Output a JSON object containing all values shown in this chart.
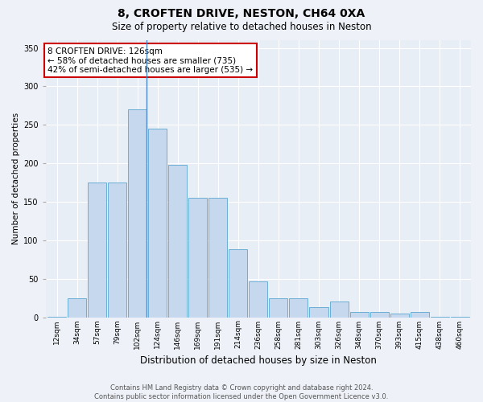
{
  "title_line1": "8, CROFTEN DRIVE, NESTON, CH64 0XA",
  "title_line2": "Size of property relative to detached houses in Neston",
  "xlabel": "Distribution of detached houses by size in Neston",
  "ylabel": "Number of detached properties",
  "bar_labels": [
    "12sqm",
    "34sqm",
    "57sqm",
    "79sqm",
    "102sqm",
    "124sqm",
    "146sqm",
    "169sqm",
    "191sqm",
    "214sqm",
    "236sqm",
    "258sqm",
    "281sqm",
    "303sqm",
    "326sqm",
    "348sqm",
    "370sqm",
    "393sqm",
    "415sqm",
    "438sqm",
    "460sqm"
  ],
  "bar_heights": [
    1,
    25,
    175,
    175,
    270,
    245,
    198,
    155,
    155,
    88,
    47,
    25,
    25,
    13,
    20,
    7,
    7,
    5,
    7,
    1,
    1
  ],
  "bar_color": "#c5d8ee",
  "bar_edge_color": "#6baed6",
  "highlight_line_color": "#4a86c8",
  "annotation_text": "8 CROFTEN DRIVE: 126sqm\n← 58% of detached houses are smaller (735)\n42% of semi-detached houses are larger (535) →",
  "annotation_box_color": "white",
  "annotation_border_color": "#cc0000",
  "ylim": [
    0,
    360
  ],
  "yticks": [
    0,
    50,
    100,
    150,
    200,
    250,
    300,
    350
  ],
  "footer_line1": "Contains HM Land Registry data © Crown copyright and database right 2024.",
  "footer_line2": "Contains public sector information licensed under the Open Government Licence v3.0.",
  "bg_color": "#eef2f8",
  "plot_bg_color": "#e8eef6",
  "grid_color": "#ffffff",
  "title1_fontsize": 10,
  "title2_fontsize": 8.5,
  "ylabel_fontsize": 7.5,
  "xlabel_fontsize": 8.5,
  "tick_fontsize": 6.5,
  "ann_fontsize": 7.5
}
